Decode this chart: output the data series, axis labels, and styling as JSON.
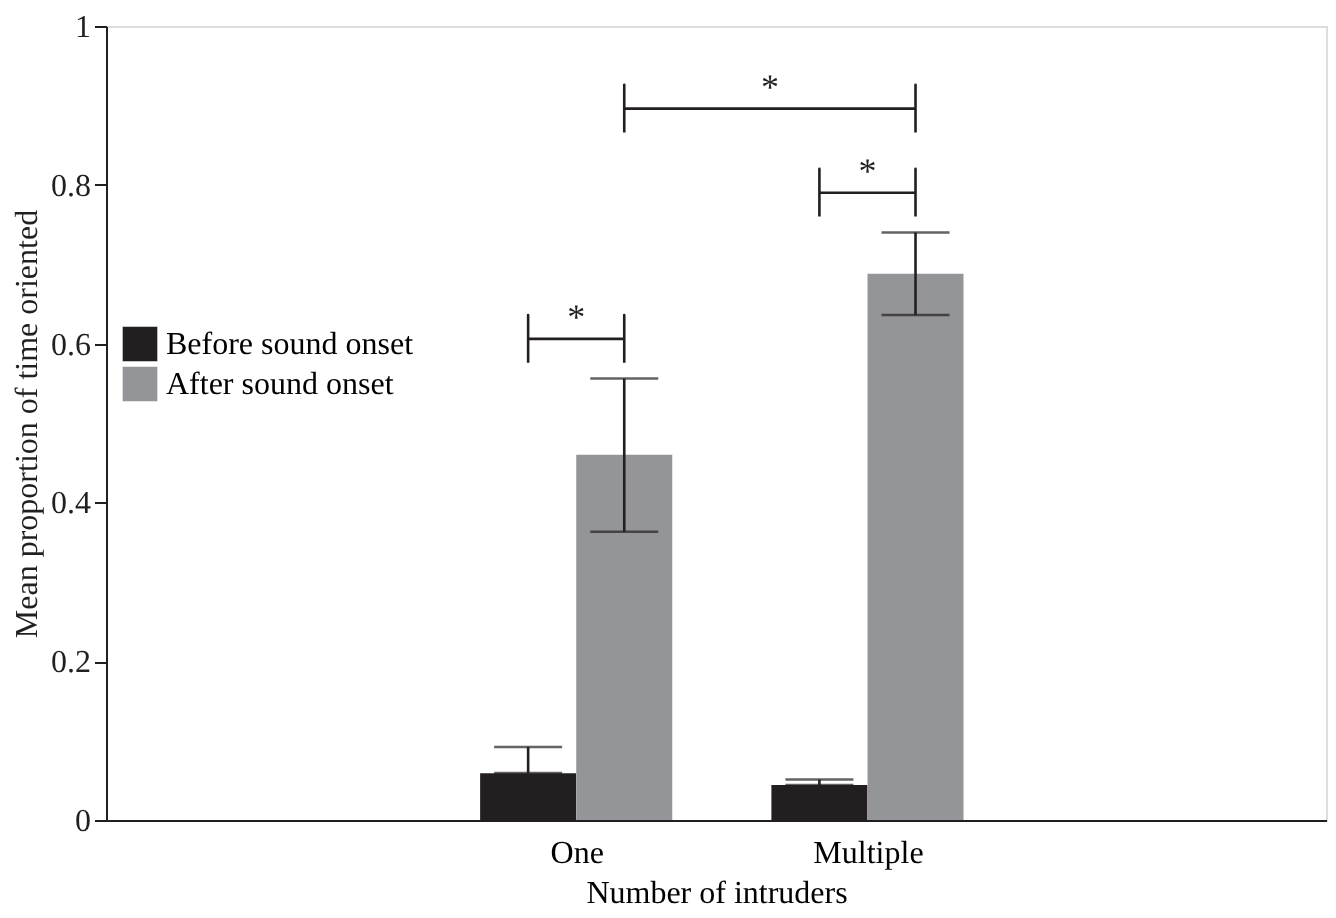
{
  "chart_data": {
    "type": "bar",
    "xlabel": "Number of intruders",
    "ylabel": "Mean proportion of time oriented",
    "categories": [
      "One",
      "Multiple"
    ],
    "series": [
      {
        "name": "Before sound onset",
        "color": "#231f20",
        "values": [
          0.059,
          0.044
        ],
        "errors": [
          [
            0.059,
            0.092
          ],
          [
            0.044,
            0.051
          ]
        ]
      },
      {
        "name": "After sound onset",
        "color": "#939598",
        "values": [
          0.46,
          0.688
        ],
        "errors": [
          [
            0.363,
            0.556
          ],
          [
            0.636,
            0.74
          ]
        ]
      }
    ],
    "ylim": [
      0,
      1
    ],
    "yticks": [
      0,
      0.2,
      0.4,
      0.6,
      0.8,
      1
    ],
    "grid": false,
    "legend": "left",
    "annotations": [
      "*",
      "*",
      "*"
    ]
  }
}
